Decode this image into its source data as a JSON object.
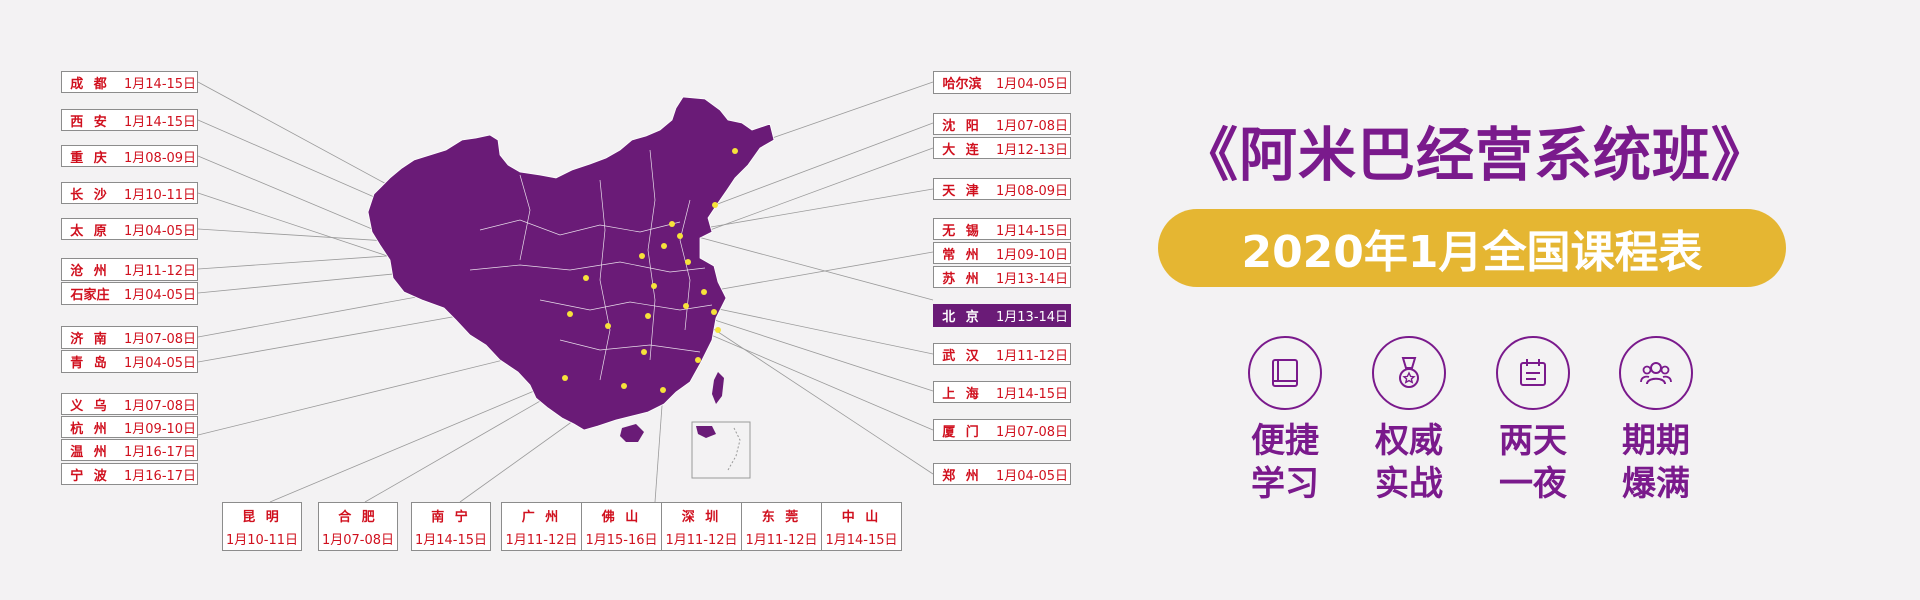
{
  "title": "《阿米巴经营系统班》",
  "subtitle": "2020年1月全国课程表",
  "left_cities": [
    {
      "name": "成 都",
      "date": "1月14-15日"
    },
    {
      "name": "西 安",
      "date": "1月14-15日"
    },
    {
      "name": "重 庆",
      "date": "1月08-09日"
    },
    {
      "name": "长 沙",
      "date": "1月10-11日"
    },
    {
      "name": "太 原",
      "date": "1月04-05日"
    },
    {
      "name": "沧 州",
      "date": "1月11-12日"
    },
    {
      "name": "石家庄",
      "date": "1月04-05日"
    },
    {
      "name": "济 南",
      "date": "1月07-08日"
    },
    {
      "name": "青 岛",
      "date": "1月04-05日"
    },
    {
      "name": "义 乌",
      "date": "1月07-08日"
    },
    {
      "name": "杭 州",
      "date": "1月09-10日"
    },
    {
      "name": "温 州",
      "date": "1月16-17日"
    },
    {
      "name": "宁 波",
      "date": "1月16-17日"
    }
  ],
  "right_cities": [
    {
      "name": "哈尔滨",
      "date": "1月04-05日"
    },
    {
      "name": "沈 阳",
      "date": "1月07-08日"
    },
    {
      "name": "大 连",
      "date": "1月12-13日"
    },
    {
      "name": "天 津",
      "date": "1月08-09日"
    },
    {
      "name": "无 锡",
      "date": "1月14-15日"
    },
    {
      "name": "常 州",
      "date": "1月09-10日"
    },
    {
      "name": "苏 州",
      "date": "1月13-14日"
    },
    {
      "name": "北 京",
      "date": "1月13-14日",
      "highlight": true
    },
    {
      "name": "武 汉",
      "date": "1月11-12日"
    },
    {
      "name": "上 海",
      "date": "1月14-15日"
    },
    {
      "name": "厦 门",
      "date": "1月07-08日"
    },
    {
      "name": "郑 州",
      "date": "1月04-05日"
    }
  ],
  "bottom_cities": [
    {
      "name": "昆 明",
      "date": "1月10-11日"
    },
    {
      "name": "合 肥",
      "date": "1月07-08日"
    },
    {
      "name": "南 宁",
      "date": "1月14-15日"
    },
    {
      "name": "广 州",
      "date": "1月11-12日"
    },
    {
      "name": "佛 山",
      "date": "1月15-16日"
    },
    {
      "name": "深 圳",
      "date": "1月11-12日"
    },
    {
      "name": "东 莞",
      "date": "1月11-12日"
    },
    {
      "name": "中 山",
      "date": "1月14-15日"
    }
  ],
  "features": [
    {
      "icon": "book-icon",
      "line1": "便捷",
      "line2": "学习"
    },
    {
      "icon": "medal-icon",
      "line1": "权威",
      "line2": "实战"
    },
    {
      "icon": "calendar-icon",
      "line1": "两天",
      "line2": "一夜"
    },
    {
      "icon": "users-icon",
      "line1": "期期",
      "line2": "爆满"
    }
  ],
  "colors": {
    "purple": "#7a1a8c",
    "map": "#6a1b77",
    "gold": "#e5b632",
    "red_text": "#d0101e",
    "dot": "#f6e23a"
  }
}
